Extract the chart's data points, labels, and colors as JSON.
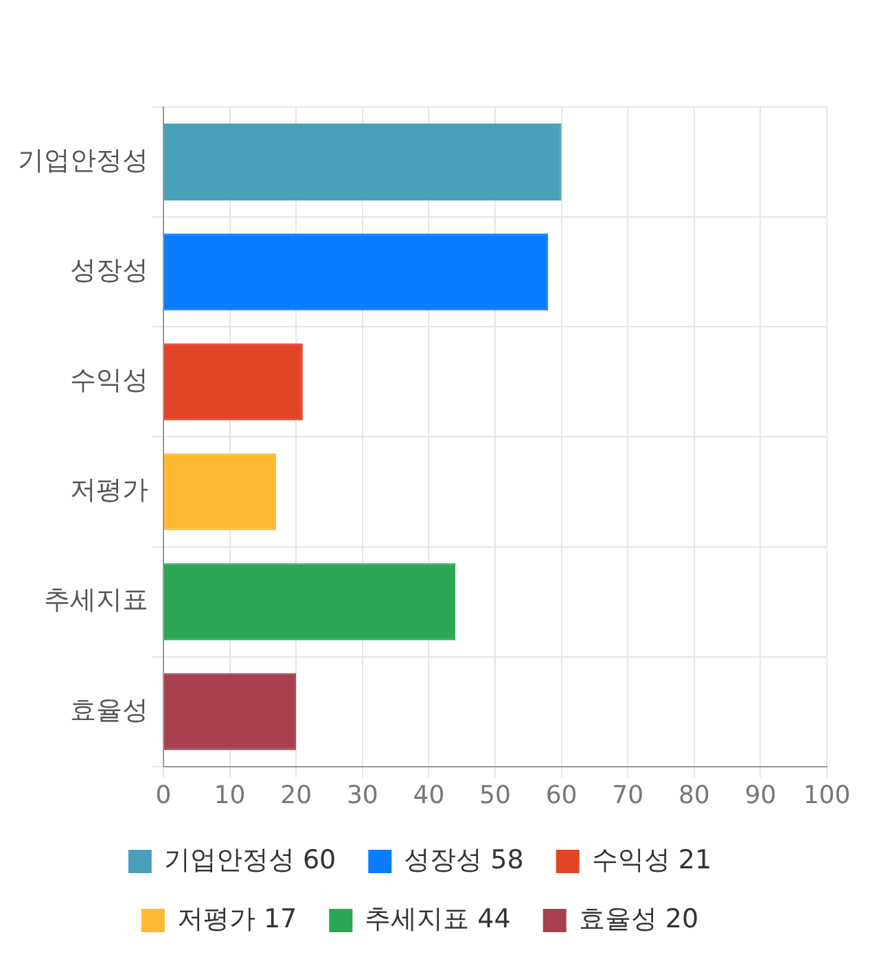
{
  "chart_data": {
    "type": "bar",
    "orientation": "horizontal",
    "categories": [
      "기업안정성",
      "성장성",
      "수익성",
      "저평가",
      "추세지표",
      "효율성"
    ],
    "series": [
      {
        "name": "기업안정성 60",
        "color": "#4aa0b8",
        "values": [
          60,
          null,
          null,
          null,
          null,
          null
        ]
      },
      {
        "name": "성장성 58",
        "color": "#0a7cff",
        "values": [
          null,
          58,
          null,
          null,
          null,
          null
        ]
      },
      {
        "name": "수익성 21",
        "color": "#e24526",
        "values": [
          null,
          null,
          21,
          null,
          null,
          null
        ]
      },
      {
        "name": "저평가 17",
        "color": "#ffb833",
        "values": [
          null,
          null,
          null,
          17,
          null,
          null
        ]
      },
      {
        "name": "추세지표 44",
        "color": "#2aa855",
        "values": [
          null,
          null,
          null,
          null,
          44,
          null
        ]
      },
      {
        "name": "효율성 20",
        "color": "#a8404e",
        "values": [
          null,
          null,
          null,
          null,
          null,
          20
        ]
      }
    ],
    "xlim": [
      0,
      100
    ],
    "xticks": [
      0,
      10,
      20,
      30,
      40,
      50,
      60,
      70,
      80,
      90,
      100
    ],
    "grid": true,
    "legend": "bottom"
  }
}
